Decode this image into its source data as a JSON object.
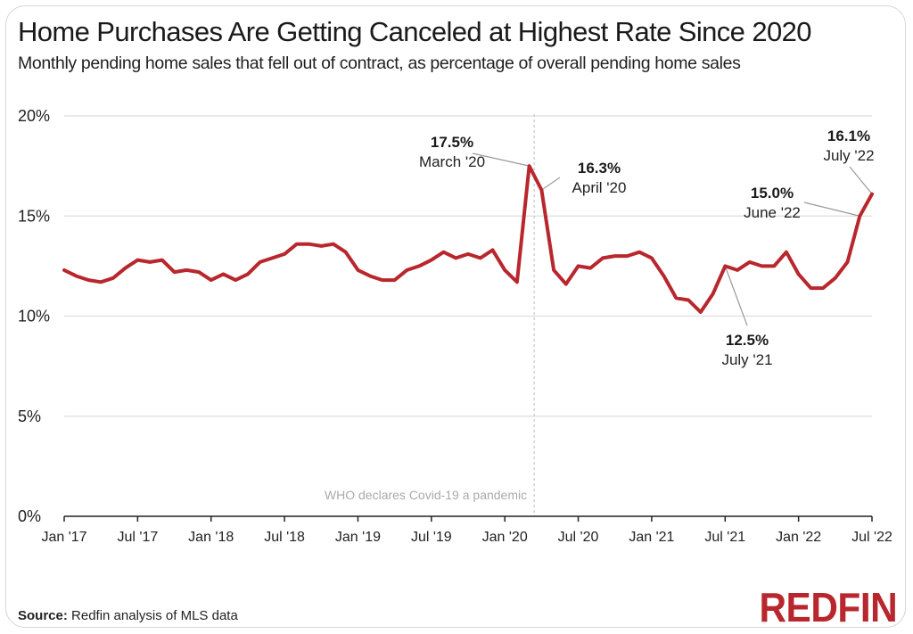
{
  "header": {
    "title": "Home Purchases Are Getting Canceled at Highest Rate Since 2020",
    "subtitle": "Monthly pending home sales that fell out of contract, as percentage of overall pending home sales"
  },
  "footer": {
    "source_label": "Source:",
    "source_text": "Redfin analysis of MLS data",
    "logo_text": "REDFIN"
  },
  "colors": {
    "line": "#b8272d",
    "grid": "#e3e3e3",
    "axis": "#222222",
    "event_line": "#c8c8c8",
    "leader": "#9a9a9a"
  },
  "chart_data": {
    "type": "line",
    "title": "Home Purchases Are Getting Canceled at Highest Rate Since 2020",
    "subtitle": "Monthly pending home sales that fell out of contract, as percentage of overall pending home sales",
    "xlabel": "",
    "ylabel": "",
    "ylim": [
      0,
      20
    ],
    "yticks": [
      0,
      5,
      10,
      15,
      20
    ],
    "ytick_labels": [
      "0%",
      "5%",
      "10%",
      "15%",
      "20%"
    ],
    "xticks_month_index": [
      0,
      6,
      12,
      18,
      24,
      30,
      36,
      42,
      48,
      54,
      60,
      66
    ],
    "xtick_labels": [
      "Jan '17",
      "Jul '17",
      "Jan '18",
      "Jul '18",
      "Jan '19",
      "Jul '19",
      "Jan '20",
      "Jul '20",
      "Jan '21",
      "Jul '21",
      "Jan '22",
      "Jul '22"
    ],
    "grid": true,
    "legend": "none",
    "series": [
      {
        "name": "Pending sales fallen out of contract (%)",
        "start": "Jan 2017",
        "frequency": "monthly",
        "values": [
          12.3,
          12.0,
          11.8,
          11.7,
          11.9,
          12.4,
          12.8,
          12.7,
          12.8,
          12.2,
          12.3,
          12.2,
          11.8,
          12.1,
          11.8,
          12.1,
          12.7,
          12.9,
          13.1,
          13.6,
          13.6,
          13.5,
          13.6,
          13.2,
          12.3,
          12.0,
          11.8,
          11.8,
          12.3,
          12.5,
          12.8,
          13.2,
          12.9,
          13.1,
          12.9,
          13.3,
          12.3,
          11.7,
          17.5,
          16.3,
          12.3,
          11.6,
          12.5,
          12.4,
          12.9,
          13.0,
          13.0,
          13.2,
          12.9,
          12.0,
          10.9,
          10.8,
          10.2,
          11.1,
          12.5,
          12.3,
          12.7,
          12.5,
          12.5,
          13.2,
          12.1,
          11.4,
          11.4,
          11.9,
          12.7,
          15.0,
          16.1
        ]
      }
    ],
    "annotations": [
      {
        "month_index": 38,
        "value_label": "17.5%",
        "date_label": "March '20"
      },
      {
        "month_index": 39,
        "value_label": "16.3%",
        "date_label": "April '20"
      },
      {
        "month_index": 54,
        "value_label": "12.5%",
        "date_label": "July '21"
      },
      {
        "month_index": 65,
        "value_label": "15.0%",
        "date_label": "June '22"
      },
      {
        "month_index": 66,
        "value_label": "16.1%",
        "date_label": "July '22"
      }
    ],
    "event_marker": {
      "month_index": 38.4,
      "label": "WHO declares Covid-19 a pandemic"
    }
  }
}
